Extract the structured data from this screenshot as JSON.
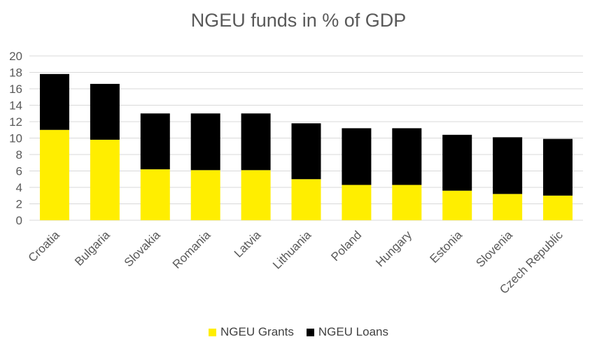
{
  "chart_data": {
    "type": "bar",
    "stacked": true,
    "title": "NGEU funds in % of GDP",
    "xlabel": "",
    "ylabel": "",
    "ylim": [
      0,
      20
    ],
    "yticks": [
      0,
      2,
      4,
      6,
      8,
      10,
      12,
      14,
      16,
      18,
      20
    ],
    "grid": true,
    "legend_position": "bottom",
    "categories": [
      "Croatia",
      "Bulgaria",
      "Slovakia",
      "Romania",
      "Latvia",
      "Lithuania",
      "Poland",
      "Hungary",
      "Estonia",
      "Slovenia",
      "Czech Republic"
    ],
    "series": [
      {
        "name": "NGEU Grants",
        "color": "#ffee00",
        "values": [
          11.0,
          9.8,
          6.2,
          6.1,
          6.1,
          5.0,
          4.3,
          4.3,
          3.6,
          3.2,
          3.0
        ]
      },
      {
        "name": "NGEU Loans",
        "color": "#000000",
        "values": [
          6.8,
          6.8,
          6.8,
          6.9,
          6.9,
          6.8,
          6.9,
          6.9,
          6.8,
          6.9,
          6.9
        ]
      }
    ]
  }
}
